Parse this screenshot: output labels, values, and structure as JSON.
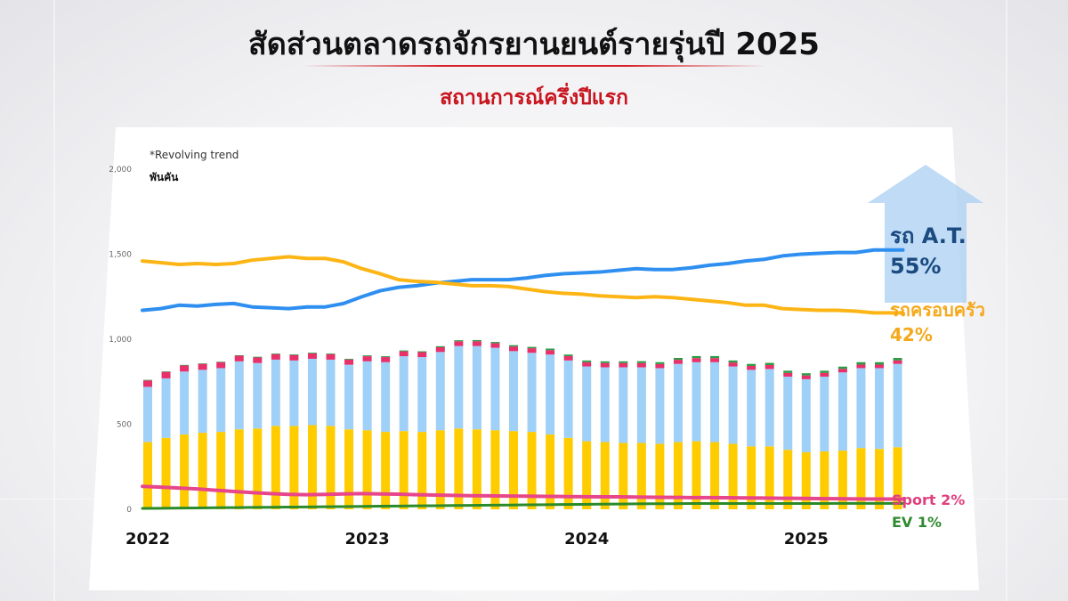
{
  "header": {
    "title": "สัดส่วนตลาดรถจักรยานยนต์รายรุ่นปี 2025",
    "subtitle": "สถานการณ์ครึ่งปีแรก"
  },
  "chart_note": "*Revolving trend",
  "unit_label": "พันคัน",
  "annotations": {
    "at_name": "รถ A.T.",
    "at_share": "55%",
    "family_name": "รถครอบครัว",
    "family_share": "42%",
    "sport": "Sport 2%",
    "ev": "EV 1%"
  },
  "colors": {
    "at": "#9fd0f7",
    "family": "#ffcc00",
    "sport": "#e8306a",
    "ev": "#2e9a45",
    "at_line": "#2f8ff0",
    "family_line": "#fdb515",
    "sport_line": "#e8468a",
    "ev_line": "#2a8a2a",
    "arrow": "#a9cff2"
  },
  "chart_data": {
    "type": "bar",
    "stacked": true,
    "ylim": [
      0,
      2000
    ],
    "yticks": [
      0,
      500,
      1000,
      1500,
      2000
    ],
    "ytick_labels": [
      "0",
      "500",
      "1,000",
      "1,500",
      "2,000"
    ],
    "year_labels": [
      "2022",
      "2023",
      "2024",
      "2025"
    ],
    "x": [
      "2022-01",
      "2022-02",
      "2022-03",
      "2022-04",
      "2022-05",
      "2022-06",
      "2022-07",
      "2022-08",
      "2022-09",
      "2022-10",
      "2022-11",
      "2022-12",
      "2023-01",
      "2023-02",
      "2023-03",
      "2023-04",
      "2023-05",
      "2023-06",
      "2023-07",
      "2023-08",
      "2023-09",
      "2023-10",
      "2023-11",
      "2023-12",
      "2024-01",
      "2024-02",
      "2024-03",
      "2024-04",
      "2024-05",
      "2024-06",
      "2024-07",
      "2024-08",
      "2024-09",
      "2024-10",
      "2024-11",
      "2024-12",
      "2025-01",
      "2025-02",
      "2025-03",
      "2025-04",
      "2025-05",
      "2025-06"
    ],
    "series": [
      {
        "values": [
          395,
          420,
          440,
          450,
          455,
          470,
          475,
          490,
          490,
          495,
          490,
          470,
          465,
          455,
          460,
          455,
          465,
          475,
          470,
          465,
          460,
          455,
          440,
          420,
          400,
          395,
          390,
          390,
          385,
          395,
          400,
          395,
          385,
          370,
          370,
          350,
          335,
          340,
          345,
          360,
          355,
          365
        ]
      },
      {
        "values": [
          325,
          350,
          370,
          370,
          375,
          400,
          385,
          390,
          385,
          390,
          390,
          380,
          405,
          410,
          440,
          440,
          460,
          485,
          490,
          485,
          470,
          465,
          470,
          455,
          440,
          440,
          445,
          445,
          445,
          460,
          465,
          470,
          455,
          450,
          455,
          430,
          430,
          440,
          460,
          470,
          475,
          490
        ]
      },
      {
        "values": [
          38,
          38,
          36,
          35,
          35,
          33,
          33,
          32,
          32,
          32,
          32,
          31,
          30,
          30,
          29,
          29,
          28,
          28,
          28,
          27,
          27,
          27,
          26,
          26,
          25,
          25,
          25,
          25,
          24,
          24,
          24,
          24,
          23,
          23,
          23,
          22,
          22,
          22,
          21,
          21,
          21,
          21
        ]
      },
      {
        "values": [
          3,
          3,
          3,
          3,
          3,
          3,
          4,
          4,
          4,
          4,
          4,
          4,
          5,
          5,
          5,
          5,
          6,
          6,
          7,
          7,
          8,
          8,
          9,
          9,
          10,
          10,
          10,
          11,
          11,
          11,
          12,
          12,
          12,
          12,
          13,
          13,
          13,
          13,
          13,
          14,
          14,
          14
        ]
      }
    ],
    "lines": [
      {
        "values": [
          1170,
          1180,
          1200,
          1195,
          1205,
          1210,
          1190,
          1185,
          1180,
          1190,
          1190,
          1210,
          1250,
          1285,
          1305,
          1315,
          1330,
          1340,
          1350,
          1350,
          1350,
          1360,
          1375,
          1385,
          1390,
          1395,
          1405,
          1415,
          1410,
          1410,
          1420,
          1435,
          1445,
          1460,
          1470,
          1490,
          1500,
          1505,
          1510,
          1510,
          1525,
          1525
        ]
      },
      {
        "values": [
          1460,
          1450,
          1440,
          1445,
          1440,
          1445,
          1465,
          1475,
          1485,
          1475,
          1475,
          1455,
          1415,
          1385,
          1350,
          1340,
          1335,
          1325,
          1315,
          1315,
          1310,
          1295,
          1280,
          1270,
          1265,
          1255,
          1250,
          1245,
          1250,
          1245,
          1235,
          1225,
          1215,
          1200,
          1200,
          1180,
          1175,
          1170,
          1170,
          1165,
          1155,
          1155
        ]
      },
      {
        "values": [
          135,
          130,
          125,
          120,
          112,
          105,
          98,
          92,
          88,
          86,
          88,
          90,
          92,
          90,
          89,
          86,
          84,
          82,
          80,
          79,
          78,
          77,
          76,
          75,
          74,
          73,
          73,
          72,
          71,
          70,
          69,
          69,
          68,
          67,
          66,
          65,
          64,
          63,
          62,
          61,
          60,
          60
        ]
      },
      {
        "values": [
          5,
          6,
          7,
          8,
          9,
          10,
          11,
          12,
          13,
          14,
          15,
          16,
          17,
          18,
          19,
          20,
          21,
          22,
          23,
          24,
          25,
          26,
          27,
          28,
          29,
          30,
          31,
          32,
          33,
          33,
          34,
          34,
          34,
          34,
          34,
          34,
          34,
          34,
          35,
          35,
          35,
          35
        ]
      }
    ]
  }
}
